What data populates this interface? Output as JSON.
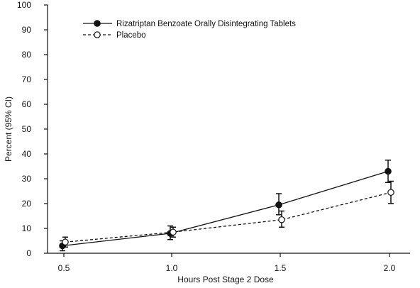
{
  "chart_data": {
    "type": "line",
    "x": [
      0.5,
      1.0,
      1.5,
      2.0
    ],
    "x_tick_labels": [
      "0.5",
      "1.0",
      "1.5",
      "2.0"
    ],
    "y_ticks": [
      0,
      10,
      20,
      30,
      40,
      50,
      60,
      70,
      80,
      90,
      100
    ],
    "xlabel": "Hours Post Stage 2 Dose",
    "ylabel": "Percent (95% CI)",
    "xlim": [
      0.5,
      2.0
    ],
    "ylim": [
      0,
      100
    ],
    "grid": false,
    "legend_position": "top-left",
    "series": [
      {
        "name": "Rizatriptan Benzoate Orally Disintegrating Tablets",
        "marker": "filled-circle",
        "line_style": "solid",
        "values": [
          3,
          8,
          19.5,
          33
        ],
        "ci_low": [
          1,
          5.5,
          15.5,
          28.5
        ],
        "ci_high": [
          5,
          11,
          24,
          37.5
        ]
      },
      {
        "name": "Placebo",
        "marker": "open-circle",
        "line_style": "dashed",
        "values": [
          4.5,
          8.5,
          13.5,
          24.5
        ],
        "ci_low": [
          2.5,
          6.5,
          10.5,
          20
        ],
        "ci_high": [
          6.5,
          10.5,
          17,
          29
        ]
      }
    ]
  },
  "colors": {
    "ink": "#111111",
    "background": "#ffffff"
  }
}
